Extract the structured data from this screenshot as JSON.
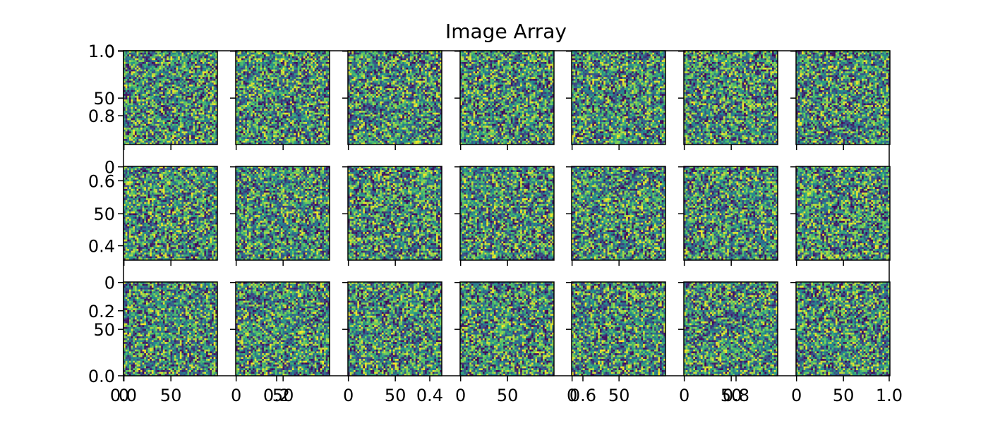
{
  "chart_data": {
    "type": "heatmap",
    "title": "Image Array",
    "colormap": "viridis",
    "colors": [
      "#440154",
      "#3b528b",
      "#21918c",
      "#5ec962",
      "#fde725"
    ],
    "grid": {
      "rows": 3,
      "cols": 7
    },
    "image_size": 100,
    "image_values": "uniform random noise in [0, 1]",
    "subplot_ticks": {
      "x": [
        0,
        50
      ],
      "y": [
        0,
        50
      ]
    },
    "background_axes": {
      "xlim": [
        0.0,
        1.0
      ],
      "ylim": [
        0.0,
        1.0
      ],
      "x_ticks": [
        0.0,
        0.2,
        0.4,
        0.6,
        0.8,
        1.0
      ],
      "y_ticks": [
        0.0,
        0.2,
        0.4,
        0.6,
        0.8,
        1.0
      ]
    },
    "tick_labels": {
      "subplot_x": [
        "0",
        "50"
      ],
      "subplot_y": [
        "0",
        "50"
      ],
      "background_x": [
        "0.0",
        "0.2",
        "0.4",
        "0.6",
        "0.8",
        "1.0"
      ],
      "background_y": [
        "0.0",
        "0.2",
        "0.4",
        "0.6",
        "0.8",
        "1.0"
      ]
    }
  }
}
